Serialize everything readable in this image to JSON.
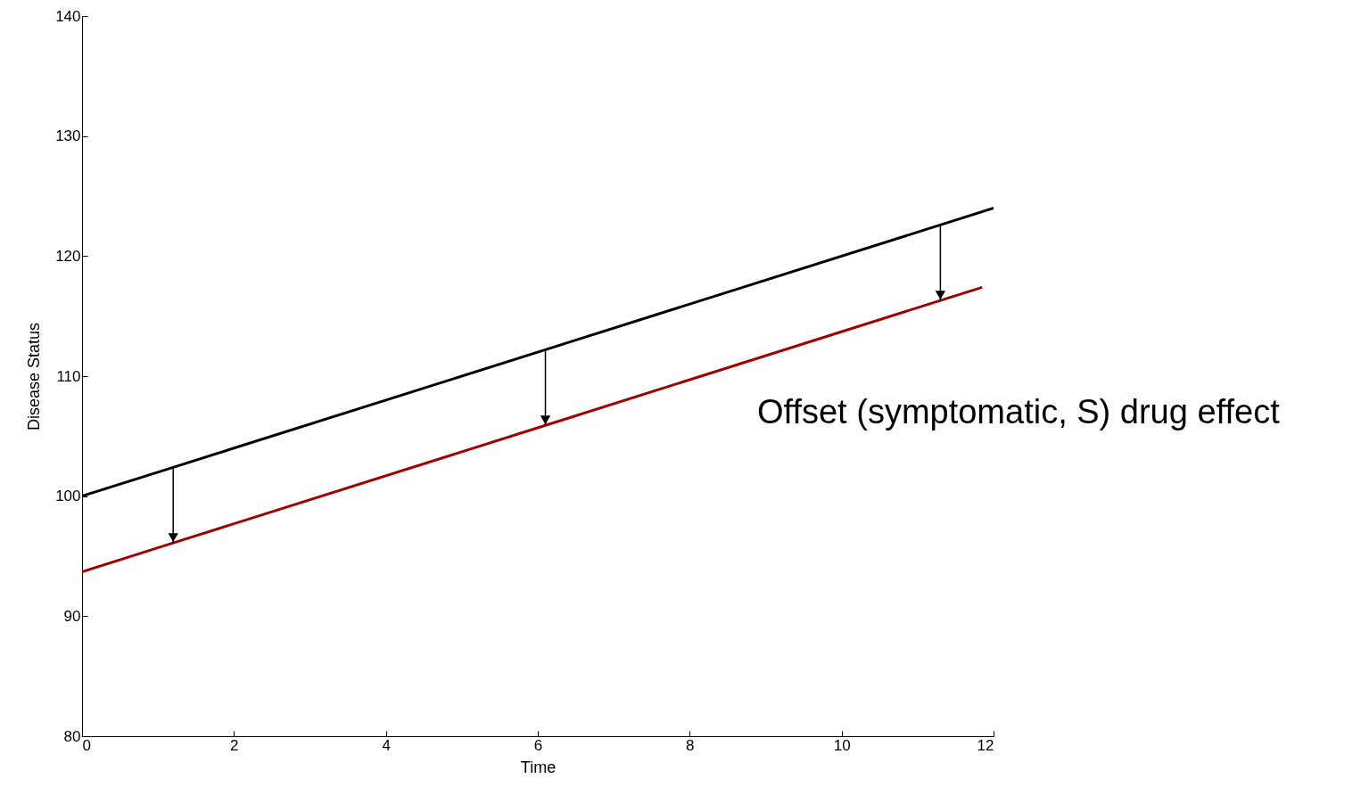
{
  "chart_data": {
    "type": "line",
    "xlabel": "Time",
    "ylabel": "Disease Status",
    "xlim": [
      0,
      12
    ],
    "ylim": [
      80,
      140
    ],
    "xticks": [
      0,
      2,
      4,
      6,
      8,
      10,
      12
    ],
    "yticks": [
      80,
      90,
      100,
      110,
      120,
      130,
      140
    ],
    "series": [
      {
        "color": "#000000",
        "x": [
          0,
          1.2,
          6.1,
          11.3,
          12
        ],
        "values": [
          100,
          102.4,
          112.2,
          122.6,
          124
        ]
      },
      {
        "color": "#a00000",
        "x": [
          0,
          1.2,
          6.1,
          11.3,
          11.85
        ],
        "values": [
          93.7,
          96.1,
          105.9,
          116.3,
          117.4
        ]
      }
    ],
    "annotations": [
      "Offset (symptomatic, S) drug effect"
    ]
  }
}
